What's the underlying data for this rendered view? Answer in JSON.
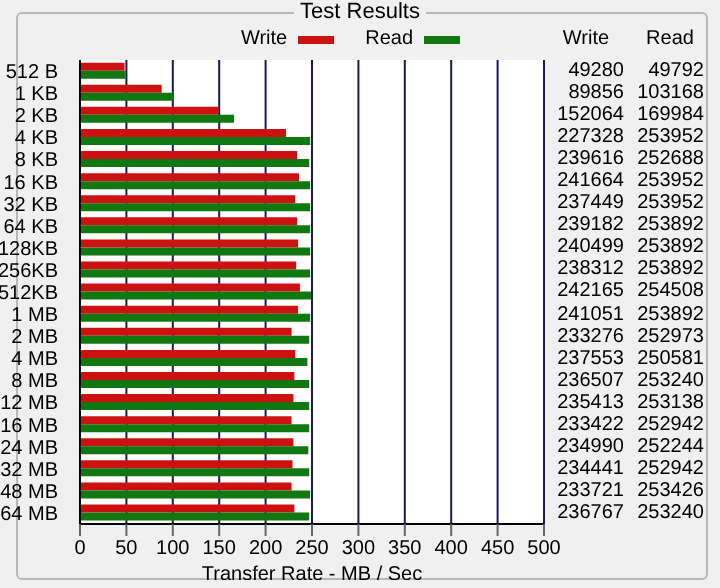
{
  "chart_data": {
    "type": "bar",
    "orientation": "horizontal",
    "title": "Test Results",
    "xlabel": "Transfer Rate - MB / Sec",
    "categories": [
      "512 B",
      "1 KB",
      "2 KB",
      "4 KB",
      "8 KB",
      "16 KB",
      "32 KB",
      "64 KB",
      "128KB",
      "256KB",
      "512KB",
      "1 MB",
      "2 MB",
      "4 MB",
      "8 MB",
      "12 MB",
      "16 MB",
      "24 MB",
      "32 MB",
      "48 MB",
      "64 MB"
    ],
    "series": [
      {
        "name": "Write",
        "color": "#cc1111",
        "values": [
          48,
          88,
          149,
          222,
          234,
          236,
          232,
          234,
          235,
          233,
          237,
          235,
          228,
          232,
          231,
          230,
          228,
          230,
          229,
          228,
          231
        ]
      },
      {
        "name": "Read",
        "color": "#117711",
        "values": [
          49,
          101,
          166,
          248,
          247,
          248,
          248,
          248,
          248,
          248,
          249,
          248,
          247,
          245,
          247,
          247,
          247,
          246,
          247,
          248,
          247
        ]
      }
    ],
    "xlim": [
      0,
      500
    ],
    "xticks": [
      0,
      50,
      100,
      150,
      200,
      250,
      300,
      350,
      400,
      450,
      500
    ],
    "grid": "x",
    "legend": "top",
    "annotations": [
      "49280",
      "49792",
      "89856",
      "103168",
      "152064",
      "169984",
      "227328",
      "253952",
      "239616",
      "252688",
      "241664",
      "253952",
      "237449",
      "253952",
      "239182",
      "253892",
      "240499",
      "253892",
      "238312",
      "253892",
      "242165",
      "254508",
      "241051",
      "253892",
      "233276",
      "252973",
      "237553",
      "250581",
      "236507",
      "253240",
      "235413",
      "253138",
      "233422",
      "252942",
      "234990",
      "252244",
      "234441",
      "252942",
      "233721",
      "253426",
      "236767",
      "253240"
    ]
  }
}
